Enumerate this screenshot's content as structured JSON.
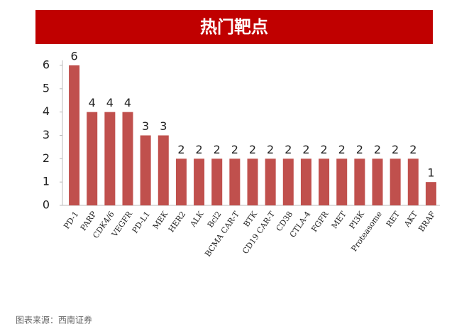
{
  "chart_data": {
    "type": "bar",
    "title": "热门靶点",
    "categories": [
      "PD-1",
      "PARP",
      "CDK4/6",
      "VEGFR",
      "PD-L1",
      "MEK",
      "HER2",
      "ALK",
      "Bcl2",
      "BCMA CAR-T",
      "BTK",
      "CD19 CAR-T",
      "CD38",
      "CTLA-4",
      "FGFR",
      "MET",
      "PI3K",
      "Proteasome",
      "RET",
      "AKT",
      "BRAF"
    ],
    "values": [
      6,
      4,
      4,
      4,
      3,
      3,
      2,
      2,
      2,
      2,
      2,
      2,
      2,
      2,
      2,
      2,
      2,
      2,
      2,
      2,
      1
    ],
    "color": "#c0504d",
    "ylim": [
      0,
      6
    ],
    "yticks": [
      0,
      1,
      2,
      3,
      4,
      5,
      6
    ],
    "source": "图表来源：西南证券"
  }
}
